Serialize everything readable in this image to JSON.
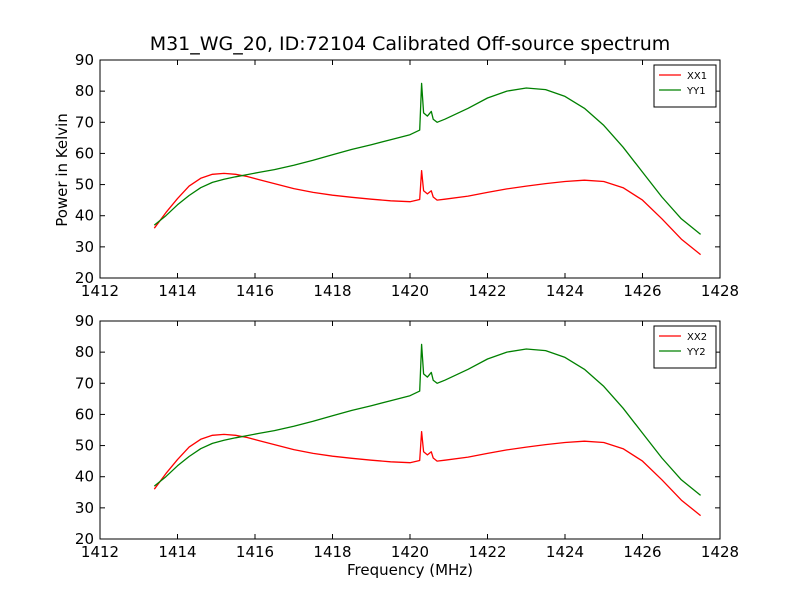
{
  "figure": {
    "title": "M31_WG_20, ID:72104 Calibrated Off-source spectrum",
    "ylabel": "Power in Kelvin",
    "xlabel": "Frequency (MHz)",
    "colors": {
      "XX": "#ff0000",
      "YY": "#008000"
    }
  },
  "chart_data": [
    {
      "type": "line",
      "title": "M31_WG_20, ID:72104 Calibrated Off-source spectrum",
      "xlabel": "",
      "ylabel": "Power in Kelvin",
      "xlim": [
        1412,
        1428
      ],
      "ylim": [
        20,
        90
      ],
      "xticks": [
        1412,
        1414,
        1416,
        1418,
        1420,
        1422,
        1424,
        1426,
        1428
      ],
      "yticks": [
        20,
        30,
        40,
        50,
        60,
        70,
        80,
        90
      ],
      "legend_position": "top-right",
      "series": [
        {
          "name": "XX1",
          "color": "#ff0000",
          "x": [
            1413.4,
            1413.7,
            1414.0,
            1414.3,
            1414.6,
            1414.9,
            1415.2,
            1415.5,
            1415.8,
            1416.1,
            1416.5,
            1417.0,
            1417.5,
            1418.0,
            1418.5,
            1419.0,
            1419.5,
            1420.0,
            1420.25,
            1420.3,
            1420.35,
            1420.45,
            1420.55,
            1420.6,
            1420.7,
            1420.9,
            1421.5,
            1422.0,
            1422.5,
            1423.0,
            1423.5,
            1424.0,
            1424.5,
            1425.0,
            1425.5,
            1426.0,
            1426.5,
            1427.0,
            1427.5
          ],
          "y": [
            36,
            41,
            45.5,
            49.5,
            52,
            53.3,
            53.6,
            53.3,
            52.6,
            51.6,
            50.3,
            48.7,
            47.5,
            46.6,
            45.9,
            45.3,
            44.8,
            44.5,
            45.2,
            54.5,
            48,
            47,
            48,
            46,
            45,
            45.3,
            46.3,
            47.5,
            48.6,
            49.5,
            50.3,
            51,
            51.4,
            51,
            49,
            45,
            39,
            32.5,
            27.5
          ]
        },
        {
          "name": "YY1",
          "color": "#008000",
          "x": [
            1413.4,
            1413.7,
            1414.0,
            1414.3,
            1414.6,
            1414.9,
            1415.2,
            1415.5,
            1415.8,
            1416.1,
            1416.5,
            1417.0,
            1417.5,
            1418.0,
            1418.5,
            1419.0,
            1419.5,
            1420.0,
            1420.25,
            1420.3,
            1420.35,
            1420.45,
            1420.55,
            1420.6,
            1420.7,
            1420.9,
            1421.5,
            1422.0,
            1422.5,
            1423.0,
            1423.5,
            1424.0,
            1424.5,
            1425.0,
            1425.5,
            1426.0,
            1426.5,
            1427.0,
            1427.5
          ],
          "y": [
            37,
            40,
            43.5,
            46.5,
            49,
            50.7,
            51.7,
            52.5,
            53.2,
            53.9,
            54.8,
            56.2,
            57.8,
            59.6,
            61.3,
            62.8,
            64.4,
            66,
            67.5,
            82.5,
            73,
            72,
            73.5,
            71,
            70,
            71,
            74.5,
            77.8,
            80,
            81,
            80.5,
            78.3,
            74.5,
            69,
            62,
            54,
            46,
            39,
            34
          ]
        }
      ]
    },
    {
      "type": "line",
      "title": "",
      "xlabel": "Frequency (MHz)",
      "ylabel": "",
      "xlim": [
        1412,
        1428
      ],
      "ylim": [
        20,
        90
      ],
      "xticks": [
        1412,
        1414,
        1416,
        1418,
        1420,
        1422,
        1424,
        1426,
        1428
      ],
      "yticks": [
        20,
        30,
        40,
        50,
        60,
        70,
        80,
        90
      ],
      "legend_position": "top-right",
      "series": [
        {
          "name": "XX2",
          "color": "#ff0000",
          "x": [
            1413.4,
            1413.7,
            1414.0,
            1414.3,
            1414.6,
            1414.9,
            1415.2,
            1415.5,
            1415.8,
            1416.1,
            1416.5,
            1417.0,
            1417.5,
            1418.0,
            1418.5,
            1419.0,
            1419.5,
            1420.0,
            1420.25,
            1420.3,
            1420.35,
            1420.45,
            1420.55,
            1420.6,
            1420.7,
            1420.9,
            1421.5,
            1422.0,
            1422.5,
            1423.0,
            1423.5,
            1424.0,
            1424.5,
            1425.0,
            1425.5,
            1426.0,
            1426.5,
            1427.0,
            1427.5
          ],
          "y": [
            36,
            41,
            45.5,
            49.5,
            52,
            53.3,
            53.6,
            53.3,
            52.6,
            51.6,
            50.3,
            48.7,
            47.5,
            46.6,
            45.9,
            45.3,
            44.8,
            44.5,
            45.2,
            54.5,
            48,
            47,
            48,
            46,
            45,
            45.3,
            46.3,
            47.5,
            48.6,
            49.5,
            50.3,
            51,
            51.4,
            51,
            49,
            45,
            39,
            32.5,
            27.5
          ]
        },
        {
          "name": "YY2",
          "color": "#008000",
          "x": [
            1413.4,
            1413.7,
            1414.0,
            1414.3,
            1414.6,
            1414.9,
            1415.2,
            1415.5,
            1415.8,
            1416.1,
            1416.5,
            1417.0,
            1417.5,
            1418.0,
            1418.5,
            1419.0,
            1419.5,
            1420.0,
            1420.25,
            1420.3,
            1420.35,
            1420.45,
            1420.55,
            1420.6,
            1420.7,
            1420.9,
            1421.5,
            1422.0,
            1422.5,
            1423.0,
            1423.5,
            1424.0,
            1424.5,
            1425.0,
            1425.5,
            1426.0,
            1426.5,
            1427.0,
            1427.5
          ],
          "y": [
            37,
            40,
            43.5,
            46.5,
            49,
            50.7,
            51.7,
            52.5,
            53.2,
            53.9,
            54.8,
            56.2,
            57.8,
            59.6,
            61.3,
            62.8,
            64.4,
            66,
            67.5,
            82.5,
            73,
            72,
            73.5,
            71,
            70,
            71,
            74.5,
            77.8,
            80,
            81,
            80.5,
            78.3,
            74.5,
            69,
            62,
            54,
            46,
            39,
            34
          ]
        }
      ]
    }
  ]
}
